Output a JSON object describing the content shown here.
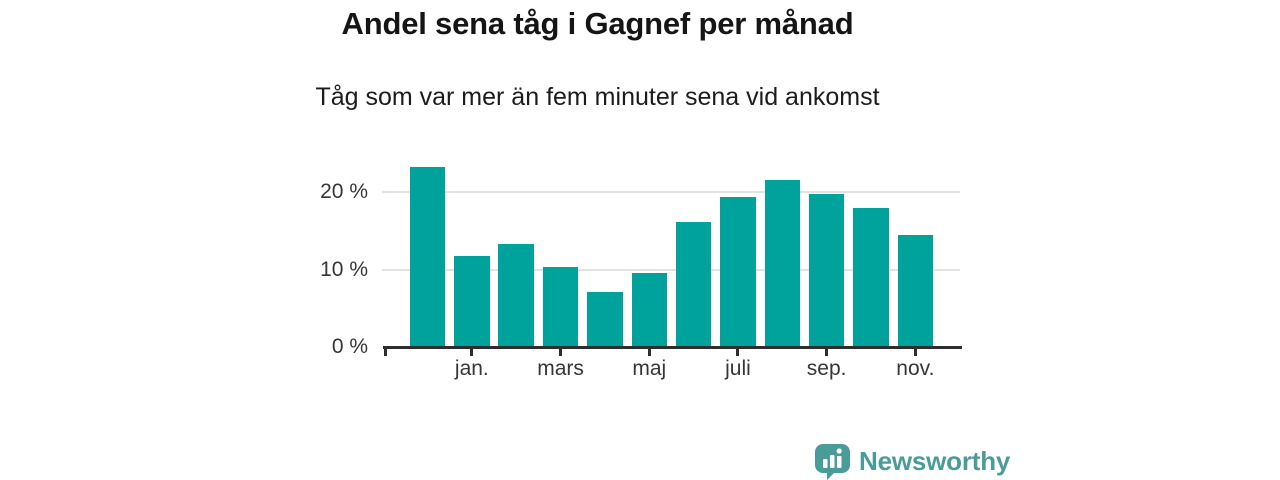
{
  "header": {
    "title": "Andel sena tåg i Gagnef per månad",
    "subtitle": "Tåg som var mer än fem minuter sena vid ankomst"
  },
  "chart_data": {
    "type": "bar",
    "title": "Andel sena tåg i Gagnef per månad",
    "subtitle": "Tåg som var mer än fem minuter sena vid ankomst",
    "unit": "%",
    "values": [
      23.2,
      11.8,
      13.3,
      10.4,
      7.1,
      9.5,
      16.1,
      19.4,
      21.6,
      19.8,
      17.9,
      14.5
    ],
    "x_tick_labels": [
      "jan.",
      "mars",
      "maj",
      "juli",
      "sep.",
      "nov."
    ],
    "x_tick_bar_indices": [
      1,
      3,
      5,
      7,
      9,
      11
    ],
    "y_tick_labels": [
      "0 %",
      "10 %",
      "20 %"
    ],
    "y_tick_values": [
      0,
      10,
      20
    ],
    "ylim": [
      0,
      24.8
    ],
    "grid": "horizontal-at-10-and-20",
    "legend": "none",
    "bar_color": "#00a39b"
  },
  "branding": {
    "logo_text": "Newsworthy",
    "logo_color": "#4a9c98",
    "logo_icon": "bar-chart-speech-bubble"
  }
}
